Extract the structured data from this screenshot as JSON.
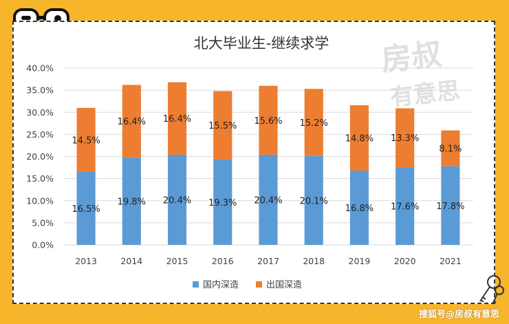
{
  "chart_data": {
    "type": "bar",
    "stacked": true,
    "title": "北大毕业生-继续求学",
    "categories": [
      "2013",
      "2014",
      "2015",
      "2016",
      "2017",
      "2018",
      "2019",
      "2020",
      "2021"
    ],
    "series": [
      {
        "name": "国内深造",
        "color": "#5b9bd5",
        "values": [
          16.5,
          19.8,
          20.4,
          19.3,
          20.4,
          20.1,
          16.8,
          17.6,
          17.8
        ],
        "labels": [
          "16.5%",
          "19.8%",
          "20.4%",
          "19.3%",
          "20.4%",
          "20.1%",
          "16.8%",
          "17.6%",
          "17.8%"
        ]
      },
      {
        "name": "出国深造",
        "color": "#ed7d31",
        "values": [
          14.5,
          16.4,
          16.4,
          15.5,
          15.6,
          15.2,
          14.8,
          13.3,
          8.1
        ],
        "labels": [
          "14.5%",
          "16.4%",
          "16.4%",
          "15.5%",
          "15.6%",
          "15.2%",
          "14.8%",
          "13.3%",
          "8.1%"
        ]
      }
    ],
    "y_ticks": [
      "0.0%",
      "5.0%",
      "10.0%",
      "15.0%",
      "20.0%",
      "25.0%",
      "30.0%",
      "35.0%",
      "40.0%"
    ],
    "ylim": [
      0,
      40
    ],
    "grid": true,
    "legend": "bottom-center"
  },
  "watermark": {
    "text": "房叔有意思",
    "lines": [
      "房叔",
      "有意思"
    ]
  },
  "credit": "搜狐号@房叔有意思",
  "icons": {
    "glasses": "glasses-icon",
    "decoration": "keys-icon"
  }
}
